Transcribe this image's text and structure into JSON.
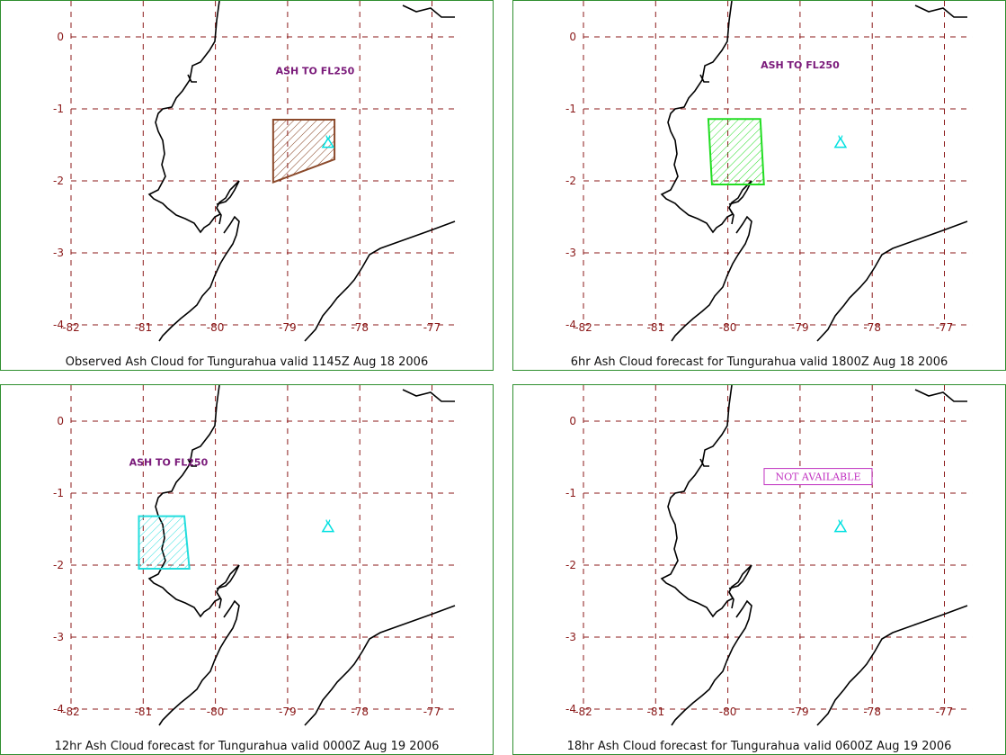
{
  "panels": [
    {
      "caption": "Observed Ash Cloud for Tungurahua valid 1145Z Aug 18 2006",
      "annotation": "ASH TO FL250",
      "cloud_color": "#8b4a2b",
      "cloud_lonlat": [
        [
          -79.2,
          -1.15
        ],
        [
          -78.35,
          -1.15
        ],
        [
          -78.35,
          -1.7
        ],
        [
          -79.2,
          -2.02
        ]
      ],
      "annotation_lonlat": [
        -78.62,
        -0.52
      ],
      "available": true
    },
    {
      "caption": "6hr Ash Cloud forecast for Tungurahua valid 1800Z Aug 18 2006",
      "annotation": "ASH TO FL250",
      "cloud_color": "#22dd22",
      "cloud_lonlat": [
        [
          -80.27,
          -1.14
        ],
        [
          -79.55,
          -1.14
        ],
        [
          -79.5,
          -2.05
        ],
        [
          -80.22,
          -2.05
        ]
      ],
      "annotation_lonlat": [
        -79.0,
        -0.44
      ],
      "available": true
    },
    {
      "caption": "12hr Ash Cloud forecast for Tungurahua valid 0000Z Aug 19 2006",
      "annotation": "ASH TO FL250",
      "cloud_color": "#22dddd",
      "cloud_lonlat": [
        [
          -81.06,
          -1.32
        ],
        [
          -80.43,
          -1.32
        ],
        [
          -80.36,
          -2.05
        ],
        [
          -81.06,
          -2.05
        ]
      ],
      "annotation_lonlat": [
        -80.65,
        -0.62
      ],
      "available": true
    },
    {
      "caption": "18hr Ash Cloud forecast for Tungurahua valid 0600Z Aug 19 2006",
      "annotation": "NOT AVAILABLE",
      "cloud_color": "",
      "cloud_lonlat": [],
      "annotation_lonlat": [
        -78.75,
        -0.77
      ],
      "available": false
    }
  ],
  "map": {
    "lon_ticks": [
      -82,
      -81,
      -80,
      -79,
      -78,
      -77
    ],
    "lat_ticks": [
      0,
      -1,
      -2,
      -3,
      -4
    ],
    "volcano_lonlat": [
      -78.44,
      -1.47
    ],
    "volcano_color": "#00e0e0",
    "grid_color": "#8b1a1a"
  }
}
